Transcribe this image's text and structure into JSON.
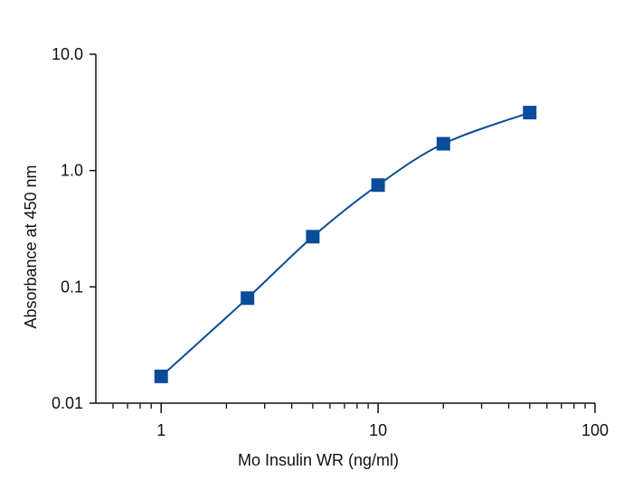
{
  "chart_data": {
    "type": "scatter",
    "title": "",
    "xlabel": "Mo Insulin WR (ng/ml)",
    "ylabel": "Absorbance at 450 nm",
    "xscale": "log",
    "yscale": "log",
    "xlim": [
      0.5,
      100
    ],
    "ylim": [
      0.01,
      10
    ],
    "x_ticks": [
      {
        "value": 1,
        "label": "1"
      },
      {
        "value": 10,
        "label": "10"
      },
      {
        "value": 100,
        "label": "100"
      }
    ],
    "y_ticks": [
      {
        "value": 0.01,
        "label": "0.01"
      },
      {
        "value": 0.1,
        "label": "0.1"
      },
      {
        "value": 1,
        "label": "1.0"
      },
      {
        "value": 10,
        "label": "10.0"
      }
    ],
    "grid": false,
    "legend": "none",
    "series": [
      {
        "marker": "square",
        "color": "#0a4c9a",
        "fit_line": true,
        "points": [
          {
            "x": 1,
            "y": 0.017
          },
          {
            "x": 2.5,
            "y": 0.08
          },
          {
            "x": 5,
            "y": 0.27
          },
          {
            "x": 10,
            "y": 0.75
          },
          {
            "x": 20,
            "y": 1.7
          },
          {
            "x": 50,
            "y": 3.15
          }
        ]
      }
    ]
  }
}
